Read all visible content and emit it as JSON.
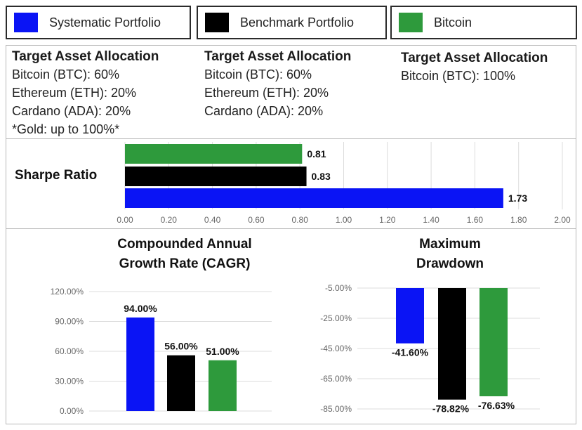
{
  "legend": [
    {
      "label": "Systematic Portfolio",
      "color": "#0a14f5"
    },
    {
      "label": "Benchmark Portfolio",
      "color": "#000000"
    },
    {
      "label": "Bitcoin",
      "color": "#2e9a3c"
    }
  ],
  "allocations": [
    {
      "title": "Target Asset Allocation",
      "items": [
        "Bitcoin (BTC): 60%",
        "Ethereum (ETH): 20%",
        "Cardano (ADA): 20%",
        "*Gold: up to 100%*"
      ]
    },
    {
      "title": "Target Asset Allocation",
      "items": [
        "Bitcoin (BTC): 60%",
        "Ethereum (ETH): 20%",
        "Cardano (ADA): 20%"
      ]
    },
    {
      "title": "Target Asset Allocation",
      "items": [
        "Bitcoin (BTC): 100%"
      ]
    }
  ],
  "chart_data": [
    {
      "type": "bar",
      "orientation": "horizontal",
      "title": "Sharpe Ratio",
      "categories": [
        "Bitcoin",
        "Benchmark Portfolio",
        "Systematic Portfolio"
      ],
      "values": [
        0.81,
        0.83,
        1.73
      ],
      "value_labels": [
        "0.81",
        "0.83",
        "1.73"
      ],
      "colors": [
        "#2e9a3c",
        "#000000",
        "#0a14f5"
      ],
      "xlim": [
        0,
        2.0
      ],
      "ticks": [
        0,
        0.2,
        0.4,
        0.6,
        0.8,
        1.0,
        1.2,
        1.4,
        1.6,
        1.8,
        2.0
      ],
      "tick_labels": [
        "0.00",
        "0.20",
        "0.40",
        "0.60",
        "0.80",
        "1.00",
        "1.20",
        "1.40",
        "1.60",
        "1.80",
        "2.00"
      ],
      "grid": true
    },
    {
      "type": "bar",
      "title_lines": [
        "Compounded Annual",
        "Growth Rate (CAGR)"
      ],
      "categories": [
        "Systematic Portfolio",
        "Benchmark Portfolio",
        "Bitcoin"
      ],
      "values": [
        94.0,
        56.0,
        51.0
      ],
      "value_labels": [
        "94.00%",
        "56.00%",
        "51.00%"
      ],
      "colors": [
        "#0a14f5",
        "#000000",
        "#2e9a3c"
      ],
      "ylim": [
        0,
        120
      ],
      "ticks": [
        0,
        30,
        60,
        90,
        120
      ],
      "tick_labels": [
        "0.00%",
        "30.00%",
        "60.00%",
        "90.00%",
        "120.00%"
      ],
      "grid": true
    },
    {
      "type": "bar",
      "title_lines": [
        "Maximum",
        "Drawdown"
      ],
      "categories": [
        "Systematic Portfolio",
        "Benchmark Portfolio",
        "Bitcoin"
      ],
      "values": [
        -41.6,
        -78.82,
        -76.63
      ],
      "value_labels": [
        "-41.60%",
        "-78.82%",
        "-76.63%"
      ],
      "colors": [
        "#0a14f5",
        "#000000",
        "#2e9a3c"
      ],
      "ylim": [
        -85,
        -5
      ],
      "ticks": [
        -5,
        -25,
        -45,
        -65,
        -85
      ],
      "tick_labels": [
        "-5.00%",
        "-25.00%",
        "-45.00%",
        "-65.00%",
        "-85.00%"
      ],
      "grid": true
    }
  ]
}
